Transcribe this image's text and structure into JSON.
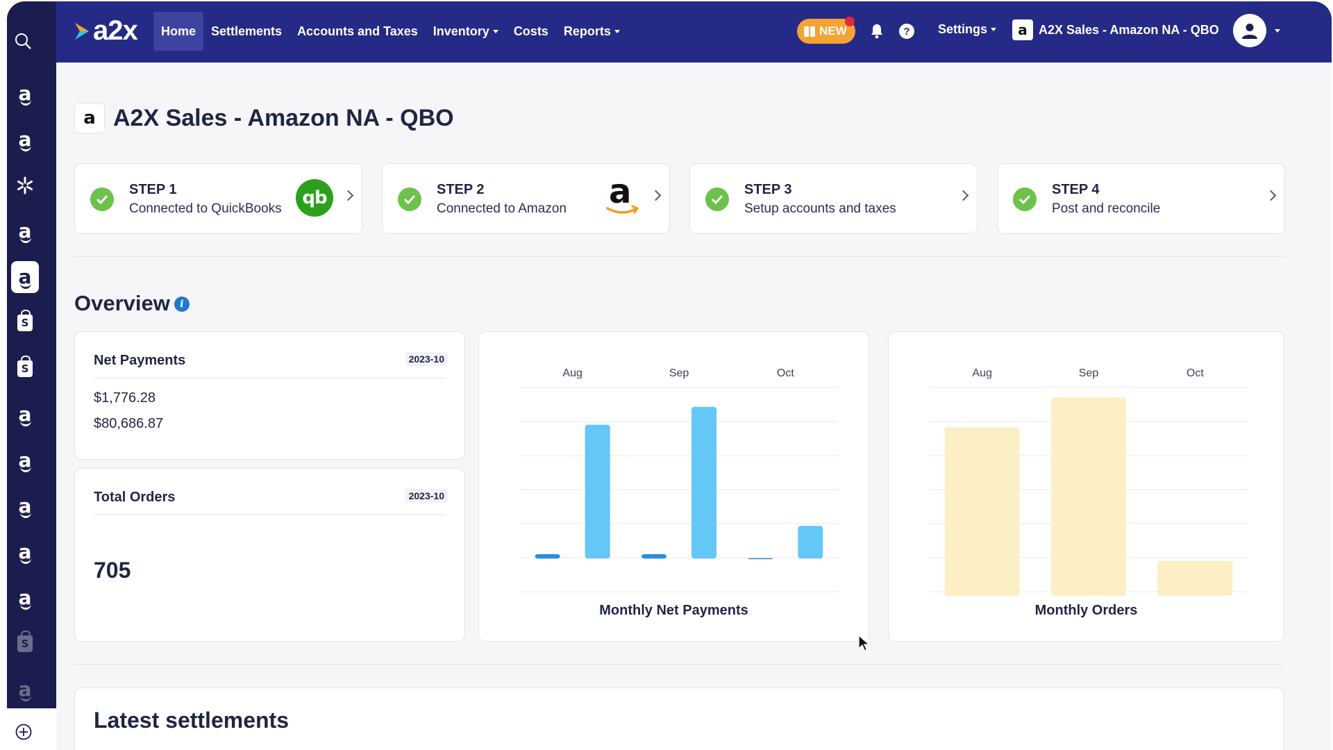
{
  "app": {
    "logo": "a2x"
  },
  "nav": {
    "items": [
      {
        "label": "Home",
        "active": true,
        "dropdown": false
      },
      {
        "label": "Settlements",
        "active": false,
        "dropdown": false
      },
      {
        "label": "Accounts and Taxes",
        "active": false,
        "dropdown": false
      },
      {
        "label": "Inventory",
        "active": false,
        "dropdown": true
      },
      {
        "label": "Costs",
        "active": false,
        "dropdown": false
      },
      {
        "label": "Reports",
        "active": false,
        "dropdown": true
      }
    ],
    "new_badge": "NEW",
    "settings_label": "Settings",
    "org_name": "A2X Sales - Amazon NA - QBO"
  },
  "rail": {
    "items": [
      "amazon-icon",
      "amazon-icon",
      "walmart-icon",
      "amazon-icon",
      "amazon-icon",
      "shopify-icon",
      "shopify-icon",
      "amazon-icon",
      "amazon-icon",
      "amazon-icon",
      "amazon-icon",
      "amazon-icon",
      "shopify-icon",
      "amazon-icon"
    ],
    "active_index": 4
  },
  "page": {
    "title": "A2X Sales - Amazon NA - QBO"
  },
  "steps": [
    {
      "step": "STEP 1",
      "desc": "Connected to QuickBooks",
      "logo": "quickbooks-logo",
      "done": true
    },
    {
      "step": "STEP 2",
      "desc": "Connected to Amazon",
      "logo": "amazon-logo",
      "done": true
    },
    {
      "step": "STEP 3",
      "desc": "Setup accounts and taxes",
      "logo": "",
      "done": true
    },
    {
      "step": "STEP 4",
      "desc": "Post and reconcile",
      "logo": "",
      "done": true
    }
  ],
  "overview": {
    "title": "Overview",
    "net_payments": {
      "label": "Net Payments",
      "period": "2023-10",
      "values": [
        "$1,776.28",
        "$80,686.87"
      ]
    },
    "total_orders": {
      "label": "Total Orders",
      "period": "2023-10",
      "value": "705"
    }
  },
  "latest_settlements": {
    "title": "Latest settlements"
  },
  "colors": {
    "nav": "#252a86",
    "rail": "#1c1d4f",
    "success": "#6cc24a",
    "bar_blue_light": "#63c7f8",
    "bar_blue_dark": "#2a8ee0",
    "bar_yellow": "#fcefc6",
    "new_badge": "#f5a335"
  },
  "chart_data": [
    {
      "type": "bar",
      "title": "Monthly Net Payments",
      "categories": [
        "Aug",
        "Sep",
        "Oct"
      ],
      "series": [
        {
          "values": [
            3,
            3,
            0.3
          ]
        },
        {
          "values": [
            90,
            102,
            22
          ]
        }
      ],
      "ylim": [
        -25,
        115
      ],
      "grid": true,
      "legend": "none"
    },
    {
      "type": "bar",
      "title": "Monthly Orders",
      "categories": [
        "Aug",
        "Sep",
        "Oct"
      ],
      "values": [
        3400,
        4000,
        705
      ],
      "ylim": [
        0,
        4200
      ],
      "grid": true,
      "legend": "none"
    }
  ]
}
